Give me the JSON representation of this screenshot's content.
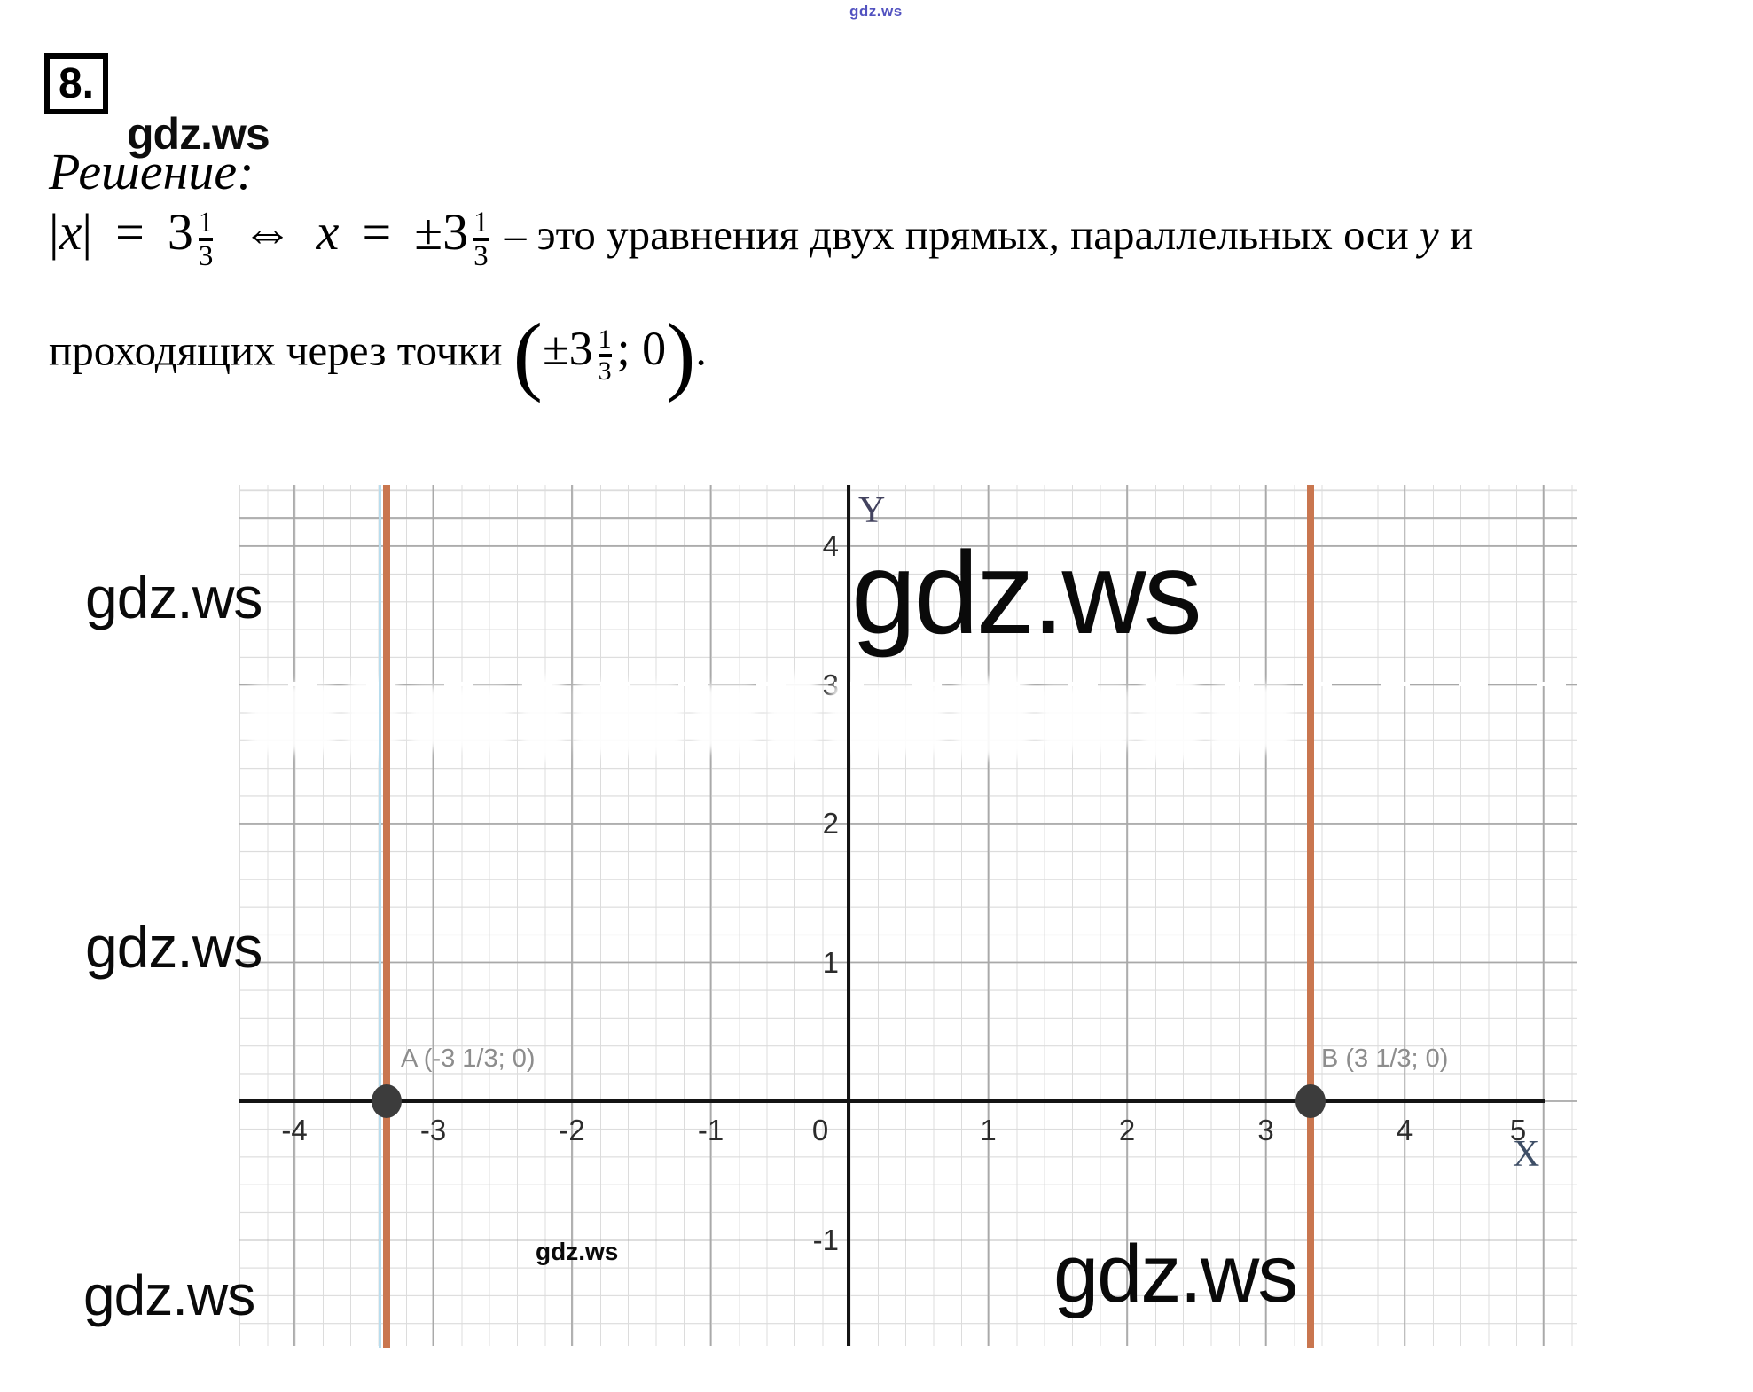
{
  "page": {
    "watermark_top": "gdz.ws"
  },
  "header": {
    "problem_number": "8.",
    "site_watermark": "gdz.ws",
    "solution_label": "Решение:"
  },
  "equation": {
    "abs_x": "|x|",
    "equals": "=",
    "whole": "3",
    "frac_num": "1",
    "frac_den": "3",
    "iff": "⇔",
    "var_x": "x",
    "equals2": "=",
    "plus_minus": "±",
    "whole2": "3",
    "line1_tail": "– это уравнения двух прямых, параллельных оси",
    "line1_var": "y",
    "line1_end": "и",
    "line2_lead": "проходящих через точки",
    "paren_open": "(",
    "point_pm": "±",
    "point_whole": "3",
    "point_rest": "; 0",
    "paren_close": ")",
    "period": "."
  },
  "graph": {
    "y_axis_letter": "Y",
    "x_axis_letter": "X",
    "watermark_big": "gdz.ws",
    "watermark_small": "gdz.ws",
    "watermark_bottom_right": "gdz.ws",
    "point_a_label": "A (-3 1/3; 0)",
    "point_b_label": "B (3 1/3; 0)"
  },
  "side_watermarks": {
    "left_1": "gdz.ws",
    "left_2": "gdz.ws",
    "bottom_left": "gdz.ws"
  },
  "chart_data": {
    "type": "line",
    "title": "",
    "x_axis_label": "X",
    "y_axis_label": "Y",
    "xlim": [
      -4.4,
      5.2
    ],
    "ylim": [
      -1.8,
      4.45
    ],
    "x_ticks": [
      -4,
      -3,
      -2,
      -1,
      0,
      1,
      2,
      3,
      4,
      5
    ],
    "y_ticks": [
      4,
      3,
      2,
      1,
      -1
    ],
    "grid": "on",
    "series": [
      {
        "name": "x = -3 1/3",
        "kind": "vertical-line",
        "x": -3.3333,
        "color": "#c9764f"
      },
      {
        "name": "x = 3 1/3",
        "kind": "vertical-line",
        "x": 3.3333,
        "color": "#c9764f"
      }
    ],
    "points": [
      {
        "label": "A (-3 1/3; 0)",
        "x": -3.3333,
        "y": 0
      },
      {
        "label": "B (3 1/3; 0)",
        "x": 3.3333,
        "y": 0
      }
    ]
  }
}
